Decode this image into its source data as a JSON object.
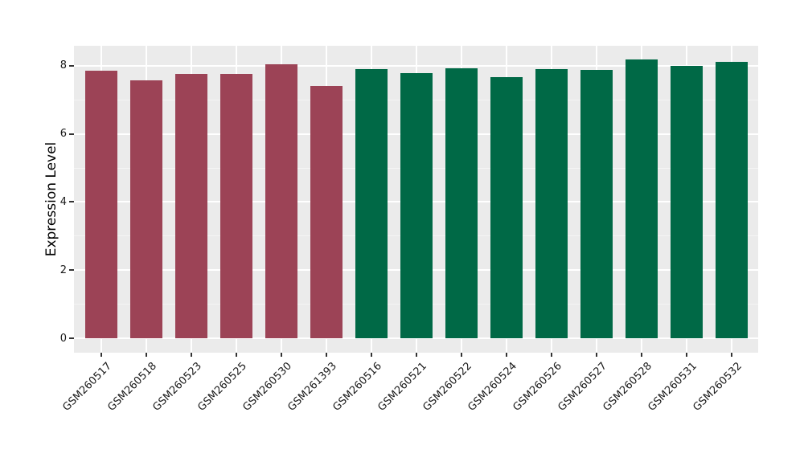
{
  "chart_data": {
    "type": "bar",
    "title": "",
    "xlabel": "",
    "ylabel": "Expression Level",
    "ylim": [
      0,
      8.58
    ],
    "yticks": [
      0,
      2,
      4,
      6,
      8
    ],
    "grid": "on",
    "legend": "none",
    "categories": [
      "GSM260517",
      "GSM260518",
      "GSM260523",
      "GSM260525",
      "GSM260530",
      "GSM261393",
      "GSM260516",
      "GSM260521",
      "GSM260522",
      "GSM260524",
      "GSM260526",
      "GSM260527",
      "GSM260528",
      "GSM260531",
      "GSM260532"
    ],
    "values": [
      7.85,
      7.57,
      7.76,
      7.76,
      8.04,
      7.41,
      7.9,
      7.78,
      7.92,
      7.67,
      7.9,
      7.88,
      8.18,
      8.0,
      8.12
    ],
    "bar_groups": [
      "group1",
      "group1",
      "group1",
      "group1",
      "group1",
      "group1",
      "group2",
      "group2",
      "group2",
      "group2",
      "group2",
      "group2",
      "group2",
      "group2",
      "group2"
    ],
    "group_colors": {
      "group1": "#9C4356",
      "group2": "#006946"
    },
    "style": {
      "panel_bg": "#EBEBEB",
      "grid_major_color": "#FFFFFF",
      "grid_minor_color": "#F5F5F5",
      "tick_color": "#333333",
      "text_color": "#1a1a1a"
    }
  }
}
